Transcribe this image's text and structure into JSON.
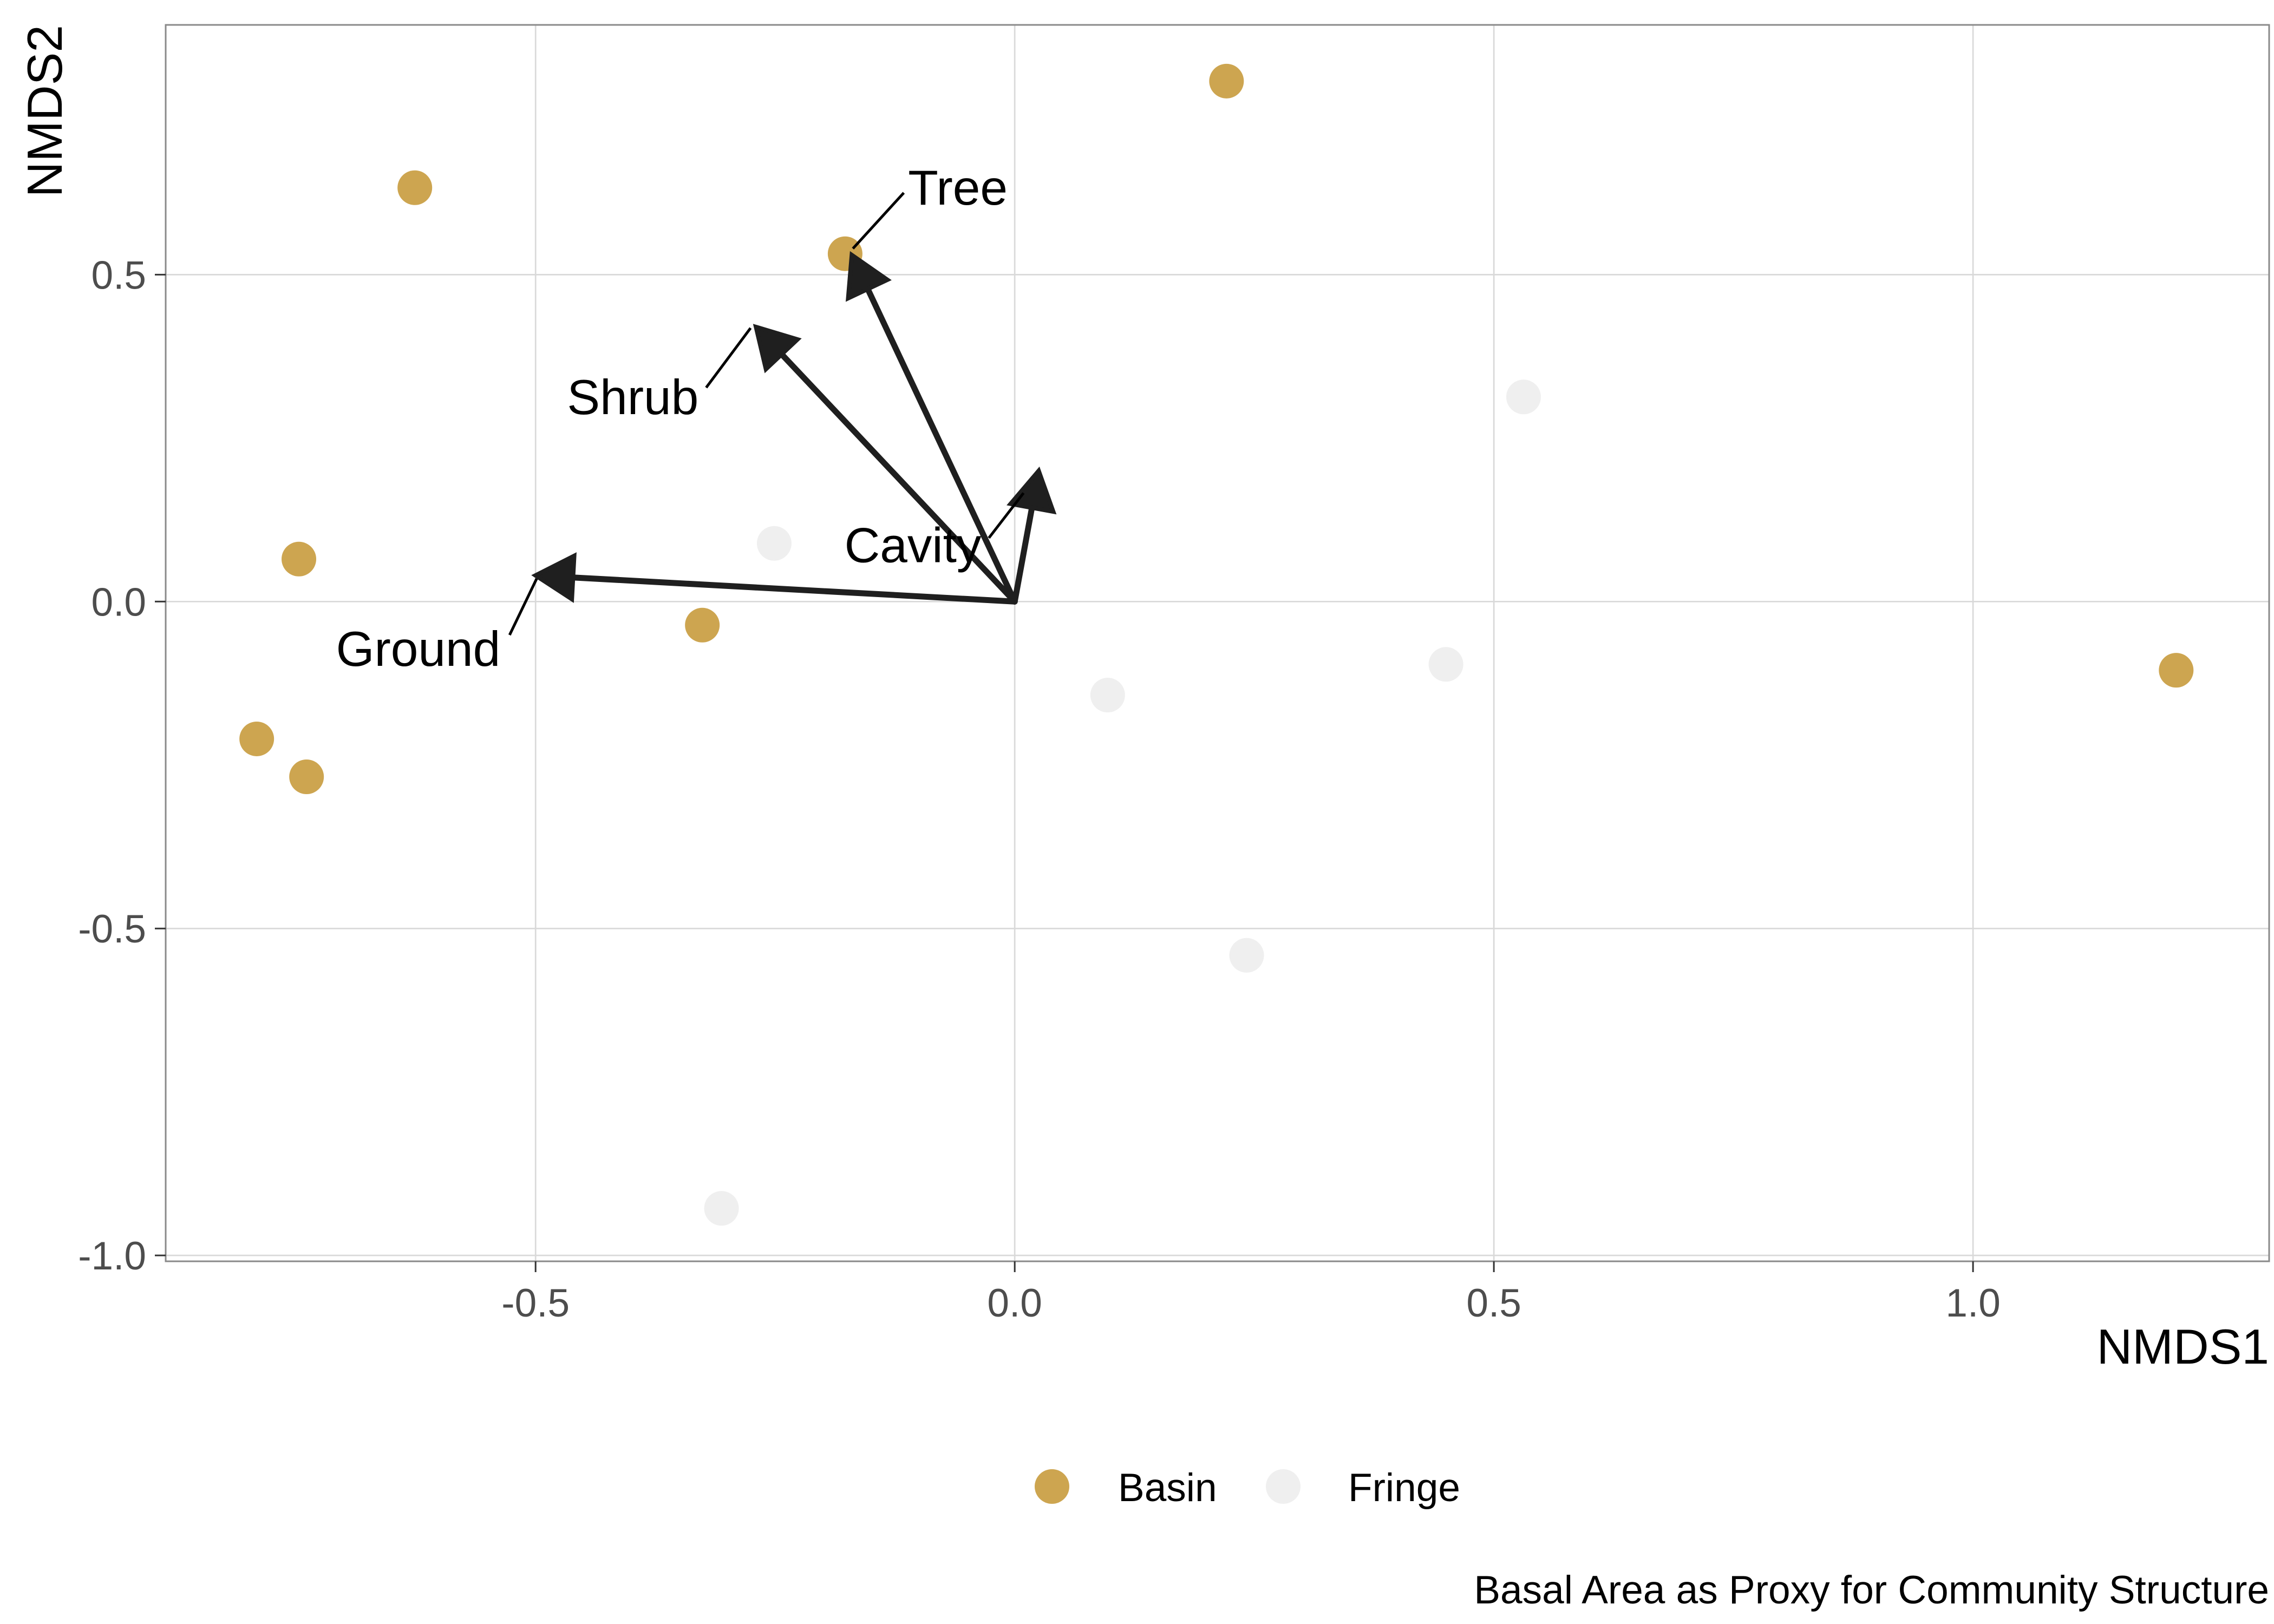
{
  "chart_data": {
    "type": "scatter",
    "xlabel": "NMDS1",
    "ylabel": "NMDS2",
    "caption": "Basal Area as Proxy for Community Structure",
    "xlim": [
      -0.886,
      1.309
    ],
    "ylim": [
      -1.009,
      0.882
    ],
    "grid": true,
    "legend_position": "bottom",
    "x_ticks": [
      {
        "value": -0.5,
        "label": "-0.5"
      },
      {
        "value": 0,
        "label": "0.0"
      },
      {
        "value": 0.5,
        "label": "0.5"
      },
      {
        "value": 1,
        "label": "1.0"
      }
    ],
    "y_ticks": [
      {
        "value": -1,
        "label": "-1.0"
      },
      {
        "value": -0.5,
        "label": "-0.5"
      },
      {
        "value": 0,
        "label": "0.0"
      },
      {
        "value": 0.5,
        "label": "0.5"
      }
    ],
    "series": [
      {
        "name": "Basin",
        "color": "#CDA550",
        "points": [
          {
            "x": 0.221,
            "y": 0.796
          },
          {
            "x": -0.626,
            "y": 0.633
          },
          {
            "x": -0.177,
            "y": 0.532
          },
          {
            "x": -0.747,
            "y": 0.065
          },
          {
            "x": -0.326,
            "y": -0.036
          },
          {
            "x": -0.791,
            "y": -0.21
          },
          {
            "x": -0.739,
            "y": -0.268
          },
          {
            "x": 1.212,
            "y": -0.105
          }
        ]
      },
      {
        "name": "Fringe",
        "color": "#EFEFEF",
        "points": [
          {
            "x": 0.531,
            "y": 0.313
          },
          {
            "x": -0.251,
            "y": 0.089
          },
          {
            "x": 0.097,
            "y": -0.143
          },
          {
            "x": 0.45,
            "y": -0.096
          },
          {
            "x": 0.242,
            "y": -0.541
          },
          {
            "x": -0.306,
            "y": -0.928
          }
        ]
      }
    ],
    "vector_color": "#1F1F1F",
    "vectors": [
      {
        "name": "Tree",
        "x": -0.17,
        "y": 0.53
      },
      {
        "name": "Shrub",
        "x": -0.27,
        "y": 0.42
      },
      {
        "name": "Cavity",
        "x": 0.025,
        "y": 0.2
      },
      {
        "name": "Ground",
        "x": -0.5,
        "y": 0.04
      }
    ]
  }
}
